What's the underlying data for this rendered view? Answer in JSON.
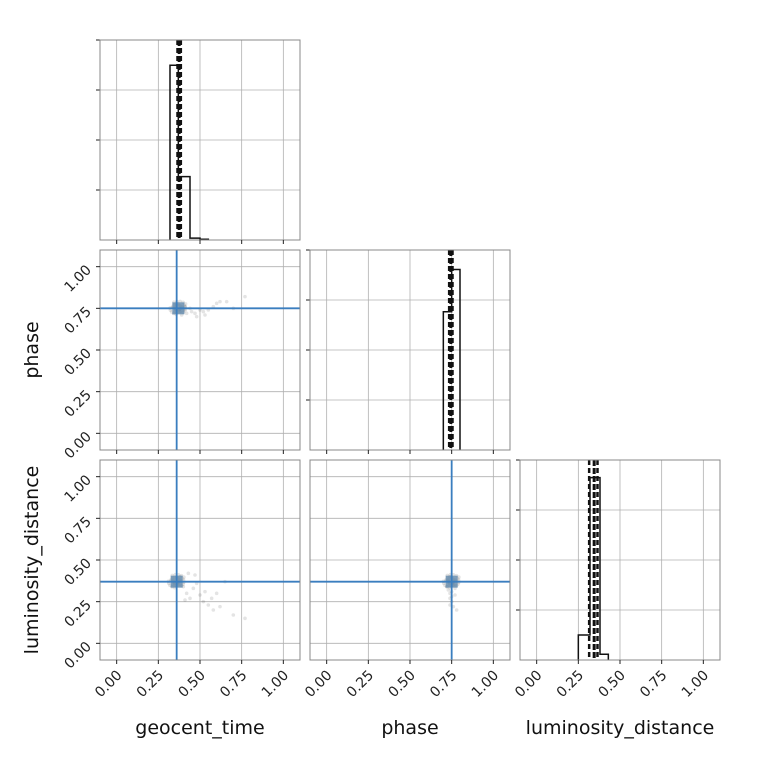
{
  "chart_data": {
    "type": "corner",
    "parameters": [
      "geocent_time",
      "phase",
      "luminosity_distance"
    ],
    "range": [
      -0.1,
      1.1
    ],
    "tick_values": [
      0.0,
      0.25,
      0.5,
      0.75,
      1.0
    ],
    "tick_labels": [
      "0.00",
      "0.25",
      "0.50",
      "0.75",
      "1.00"
    ],
    "grid": true,
    "truths": {
      "geocent_time": 0.36,
      "phase": 0.75,
      "luminosity_distance": 0.37
    },
    "histograms": [
      {
        "parameter": "geocent_time",
        "bin_edges": [
          0.32,
          0.37,
          0.44,
          0.5,
          0.55
        ],
        "density": [
          0.91,
          0.33,
          0.01,
          0.004
        ],
        "quantile_lines": [
          0.365,
          0.375,
          0.385
        ],
        "ymax": 1.0
      },
      {
        "parameter": "phase",
        "bin_edges": [
          0.7,
          0.75,
          0.8
        ],
        "density": [
          0.72,
          0.94
        ],
        "quantile_lines": [
          0.735,
          0.745,
          0.755
        ],
        "ymax": 1.0
      },
      {
        "parameter": "luminosity_distance",
        "bin_edges": [
          0.25,
          0.32,
          0.38,
          0.43
        ],
        "density": [
          0.13,
          0.95,
          0.03
        ],
        "quantile_lines": [
          0.315,
          0.345,
          0.365
        ],
        "ymax": 1.0
      }
    ],
    "scatter": [
      {
        "x": "geocent_time",
        "y": "phase",
        "center": [
          0.37,
          0.75
        ],
        "points": [
          [
            0.36,
            0.77
          ],
          [
            0.38,
            0.73
          ],
          [
            0.4,
            0.74
          ],
          [
            0.42,
            0.72
          ],
          [
            0.45,
            0.73
          ],
          [
            0.47,
            0.72
          ],
          [
            0.5,
            0.74
          ],
          [
            0.52,
            0.73
          ],
          [
            0.55,
            0.74
          ],
          [
            0.58,
            0.76
          ],
          [
            0.6,
            0.78
          ],
          [
            0.62,
            0.79
          ],
          [
            0.66,
            0.79
          ],
          [
            0.7,
            0.75
          ],
          [
            0.77,
            0.82
          ],
          [
            0.48,
            0.7
          ],
          [
            0.44,
            0.75
          ],
          [
            0.41,
            0.76
          ],
          [
            0.39,
            0.71
          ],
          [
            0.53,
            0.71
          ]
        ]
      },
      {
        "x": "geocent_time",
        "y": "luminosity_distance",
        "center": [
          0.36,
          0.37
        ],
        "points": [
          [
            0.38,
            0.4
          ],
          [
            0.4,
            0.34
          ],
          [
            0.42,
            0.3
          ],
          [
            0.44,
            0.27
          ],
          [
            0.46,
            0.33
          ],
          [
            0.48,
            0.36
          ],
          [
            0.5,
            0.29
          ],
          [
            0.52,
            0.25
          ],
          [
            0.55,
            0.23
          ],
          [
            0.58,
            0.2
          ],
          [
            0.62,
            0.22
          ],
          [
            0.65,
            0.37
          ],
          [
            0.7,
            0.17
          ],
          [
            0.77,
            0.15
          ],
          [
            0.43,
            0.42
          ],
          [
            0.47,
            0.41
          ],
          [
            0.41,
            0.26
          ],
          [
            0.53,
            0.31
          ],
          [
            0.57,
            0.27
          ],
          [
            0.6,
            0.3
          ]
        ]
      },
      {
        "x": "phase",
        "y": "luminosity_distance",
        "center": [
          0.75,
          0.37
        ],
        "points": [
          [
            0.74,
            0.3
          ],
          [
            0.75,
            0.28
          ],
          [
            0.73,
            0.32
          ],
          [
            0.76,
            0.35
          ],
          [
            0.74,
            0.4
          ],
          [
            0.75,
            0.25
          ],
          [
            0.77,
            0.33
          ],
          [
            0.72,
            0.34
          ],
          [
            0.76,
            0.22
          ],
          [
            0.78,
            0.2
          ],
          [
            0.74,
            0.27
          ],
          [
            0.73,
            0.38
          ],
          [
            0.77,
            0.29
          ],
          [
            0.75,
            0.31
          ],
          [
            0.74,
            0.23
          ]
        ]
      }
    ]
  }
}
